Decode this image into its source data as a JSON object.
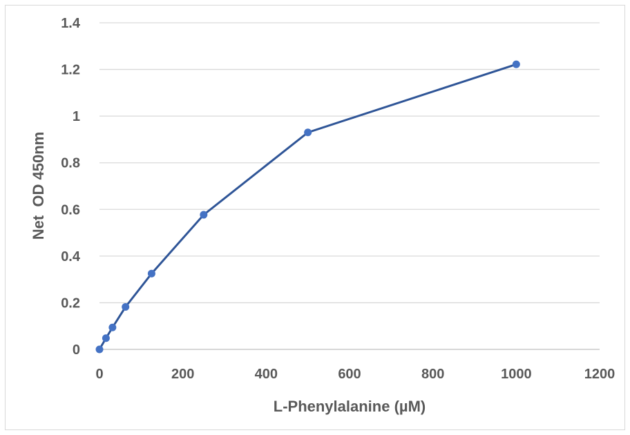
{
  "chart_data": {
    "type": "scatter",
    "title": "",
    "xlabel": "L-Phenylalanine (µM)",
    "ylabel": "Net  OD 450nm",
    "xlim": [
      0,
      1200
    ],
    "ylim": [
      0,
      1.4
    ],
    "x_ticks": [
      "0",
      "200",
      "400",
      "600",
      "800",
      "1000",
      "1200"
    ],
    "y_ticks": [
      "0",
      "0.2",
      "0.4",
      "0.6",
      "0.8",
      "1",
      "1.2",
      "1.4"
    ],
    "grid": "horizontal",
    "legend": "none",
    "series": [
      {
        "color": "#4472c4",
        "line_color": "#2f5597",
        "points": [
          {
            "x": 0,
            "y": 0
          },
          {
            "x": 15.6,
            "y": 0.048
          },
          {
            "x": 31.25,
            "y": 0.094
          },
          {
            "x": 62.5,
            "y": 0.182
          },
          {
            "x": 125,
            "y": 0.325
          },
          {
            "x": 250,
            "y": 0.577
          },
          {
            "x": 500,
            "y": 0.93
          },
          {
            "x": 1000,
            "y": 1.222
          }
        ]
      }
    ]
  }
}
